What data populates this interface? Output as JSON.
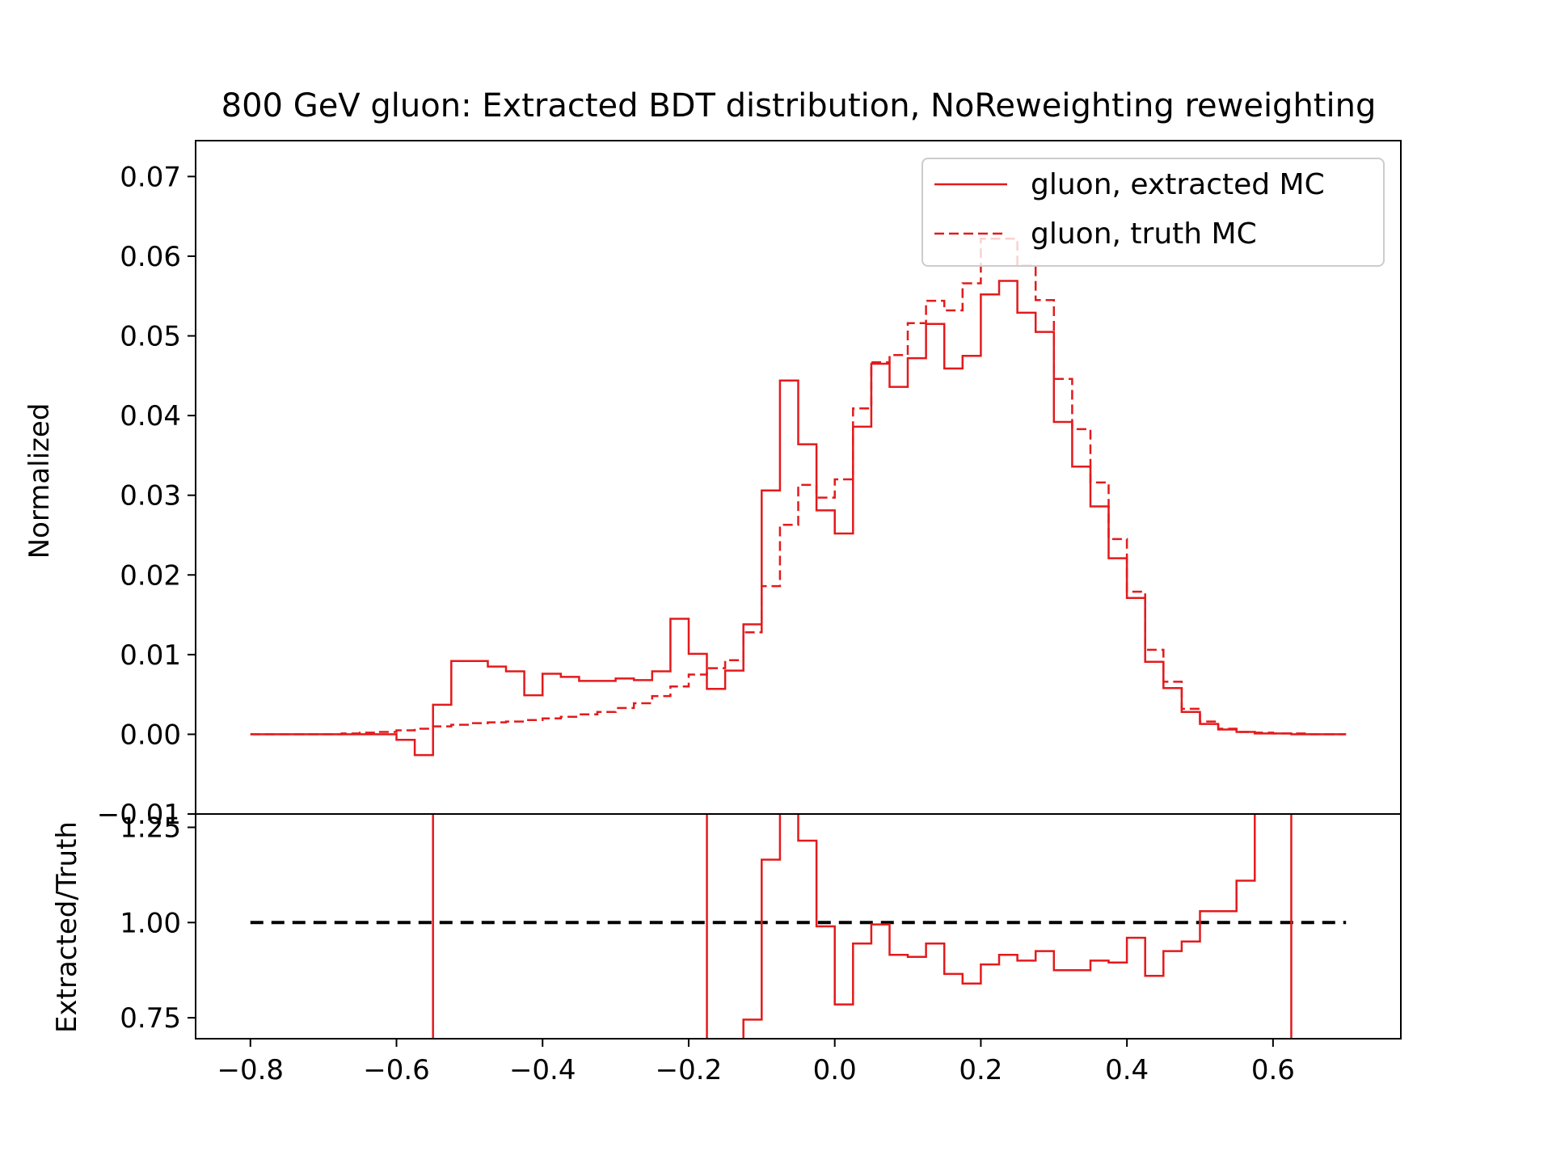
{
  "figure": {
    "title": "800 GeV gluon: Extracted BDT distribution, NoReweighting reweighting"
  },
  "chart_data": [
    {
      "type": "line",
      "title": "800 GeV gluon: Extracted BDT distribution, NoReweighting reweighting",
      "xlabel": "",
      "ylabel": "Normalized",
      "xlim": [
        -0.875,
        0.775
      ],
      "ylim": [
        -0.01,
        0.0745
      ],
      "grid": false,
      "legend": "top-right",
      "color": "#e31a1c",
      "yticks": [
        "−0.01",
        "0.00",
        "0.01",
        "0.02",
        "0.03",
        "0.04",
        "0.05",
        "0.06",
        "0.07"
      ],
      "bin_edges": [
        -0.8,
        -0.775,
        -0.75,
        -0.725,
        -0.7,
        -0.675,
        -0.65,
        -0.625,
        -0.6,
        -0.575,
        -0.55,
        -0.525,
        -0.5,
        -0.475,
        -0.45,
        -0.425,
        -0.4,
        -0.375,
        -0.35,
        -0.325,
        -0.3,
        -0.275,
        -0.25,
        -0.225,
        -0.2,
        -0.175,
        -0.15,
        -0.125,
        -0.1,
        -0.075,
        -0.05,
        -0.025,
        0.0,
        0.025,
        0.05,
        0.075,
        0.1,
        0.125,
        0.15,
        0.175,
        0.2,
        0.225,
        0.25,
        0.275,
        0.3,
        0.325,
        0.35,
        0.375,
        0.4,
        0.425,
        0.45,
        0.475,
        0.5,
        0.525,
        0.55,
        0.575,
        0.6,
        0.625,
        0.65,
        0.675,
        0.7
      ],
      "series": [
        {
          "name": "gluon, extracted MC",
          "style": "solid",
          "values": [
            0,
            0,
            0,
            0,
            0,
            0,
            0,
            0,
            -0.0007,
            -0.0026,
            0.0037,
            0.0092,
            0.0092,
            0.0085,
            0.0079,
            0.0049,
            0.0076,
            0.0072,
            0.0067,
            0.0067,
            0.007,
            0.0068,
            0.0079,
            0.0145,
            0.0101,
            0.0057,
            0.008,
            0.0138,
            0.0306,
            0.0444,
            0.0364,
            0.0281,
            0.0252,
            0.0386,
            0.0465,
            0.0436,
            0.0472,
            0.0515,
            0.0459,
            0.0475,
            0.0552,
            0.0569,
            0.0529,
            0.0505,
            0.0392,
            0.0336,
            0.0286,
            0.0221,
            0.0171,
            0.0091,
            0.0058,
            0.0028,
            0.0013,
            0.0006,
            0.0003,
            0.0001,
            0.0001,
            0,
            0,
            0
          ]
        },
        {
          "name": "gluon, truth MC",
          "style": "dashed",
          "values": [
            0,
            0,
            0,
            0,
            0,
            0.0001,
            0.0002,
            0.0003,
            0.0005,
            0.0007,
            0.001,
            0.0012,
            0.0014,
            0.0015,
            0.0016,
            0.0018,
            0.002,
            0.0022,
            0.0025,
            0.0028,
            0.0033,
            0.0039,
            0.0048,
            0.006,
            0.0075,
            0.0083,
            0.0093,
            0.0128,
            0.0186,
            0.0263,
            0.0313,
            0.0297,
            0.032,
            0.0409,
            0.0467,
            0.0476,
            0.0516,
            0.0544,
            0.0532,
            0.0566,
            0.0622,
            0.0622,
            0.0588,
            0.0545,
            0.0446,
            0.0383,
            0.0316,
            0.0245,
            0.0179,
            0.0106,
            0.0066,
            0.0032,
            0.0016,
            0.0007,
            0.0003,
            0.0002,
            0.0001,
            0.0001,
            0,
            0
          ]
        }
      ]
    },
    {
      "type": "line",
      "title": "",
      "xlabel": "",
      "ylabel": "Extracted/Truth",
      "xlim": [
        -0.875,
        0.775
      ],
      "ylim": [
        0.695,
        1.285
      ],
      "grid": false,
      "color": "#e31a1c",
      "reference_line": {
        "y": 1.0,
        "style": "dashed",
        "color": "#000000"
      },
      "xticks": [
        "−0.8",
        "−0.6",
        "−0.4",
        "−0.2",
        "0.0",
        "0.2",
        "0.4",
        "0.6"
      ],
      "yticks": [
        "0.75",
        "1.00",
        "1.25"
      ],
      "bin_edges": [
        -0.125,
        -0.1,
        -0.075,
        -0.05,
        -0.025,
        0.0,
        0.025,
        0.05,
        0.075,
        0.1,
        0.125,
        0.15,
        0.175,
        0.2,
        0.225,
        0.25,
        0.275,
        0.3,
        0.325,
        0.35,
        0.375,
        0.4,
        0.425,
        0.45,
        0.475,
        0.5,
        0.525,
        0.55,
        0.575
      ],
      "series": [
        {
          "name": "Extracted/Truth",
          "values": [
            0.745,
            1.165,
            1.42,
            1.215,
            0.99,
            0.785,
            0.945,
            0.995,
            0.915,
            0.91,
            0.945,
            0.865,
            0.84,
            0.89,
            0.915,
            0.9,
            0.925,
            0.875,
            0.875,
            0.9,
            0.895,
            0.96,
            0.86,
            0.925,
            0.95,
            1.03,
            1.03,
            1.11
          ]
        }
      ],
      "vertical_lines_x": [
        -0.55,
        -0.175,
        0.625
      ]
    }
  ]
}
